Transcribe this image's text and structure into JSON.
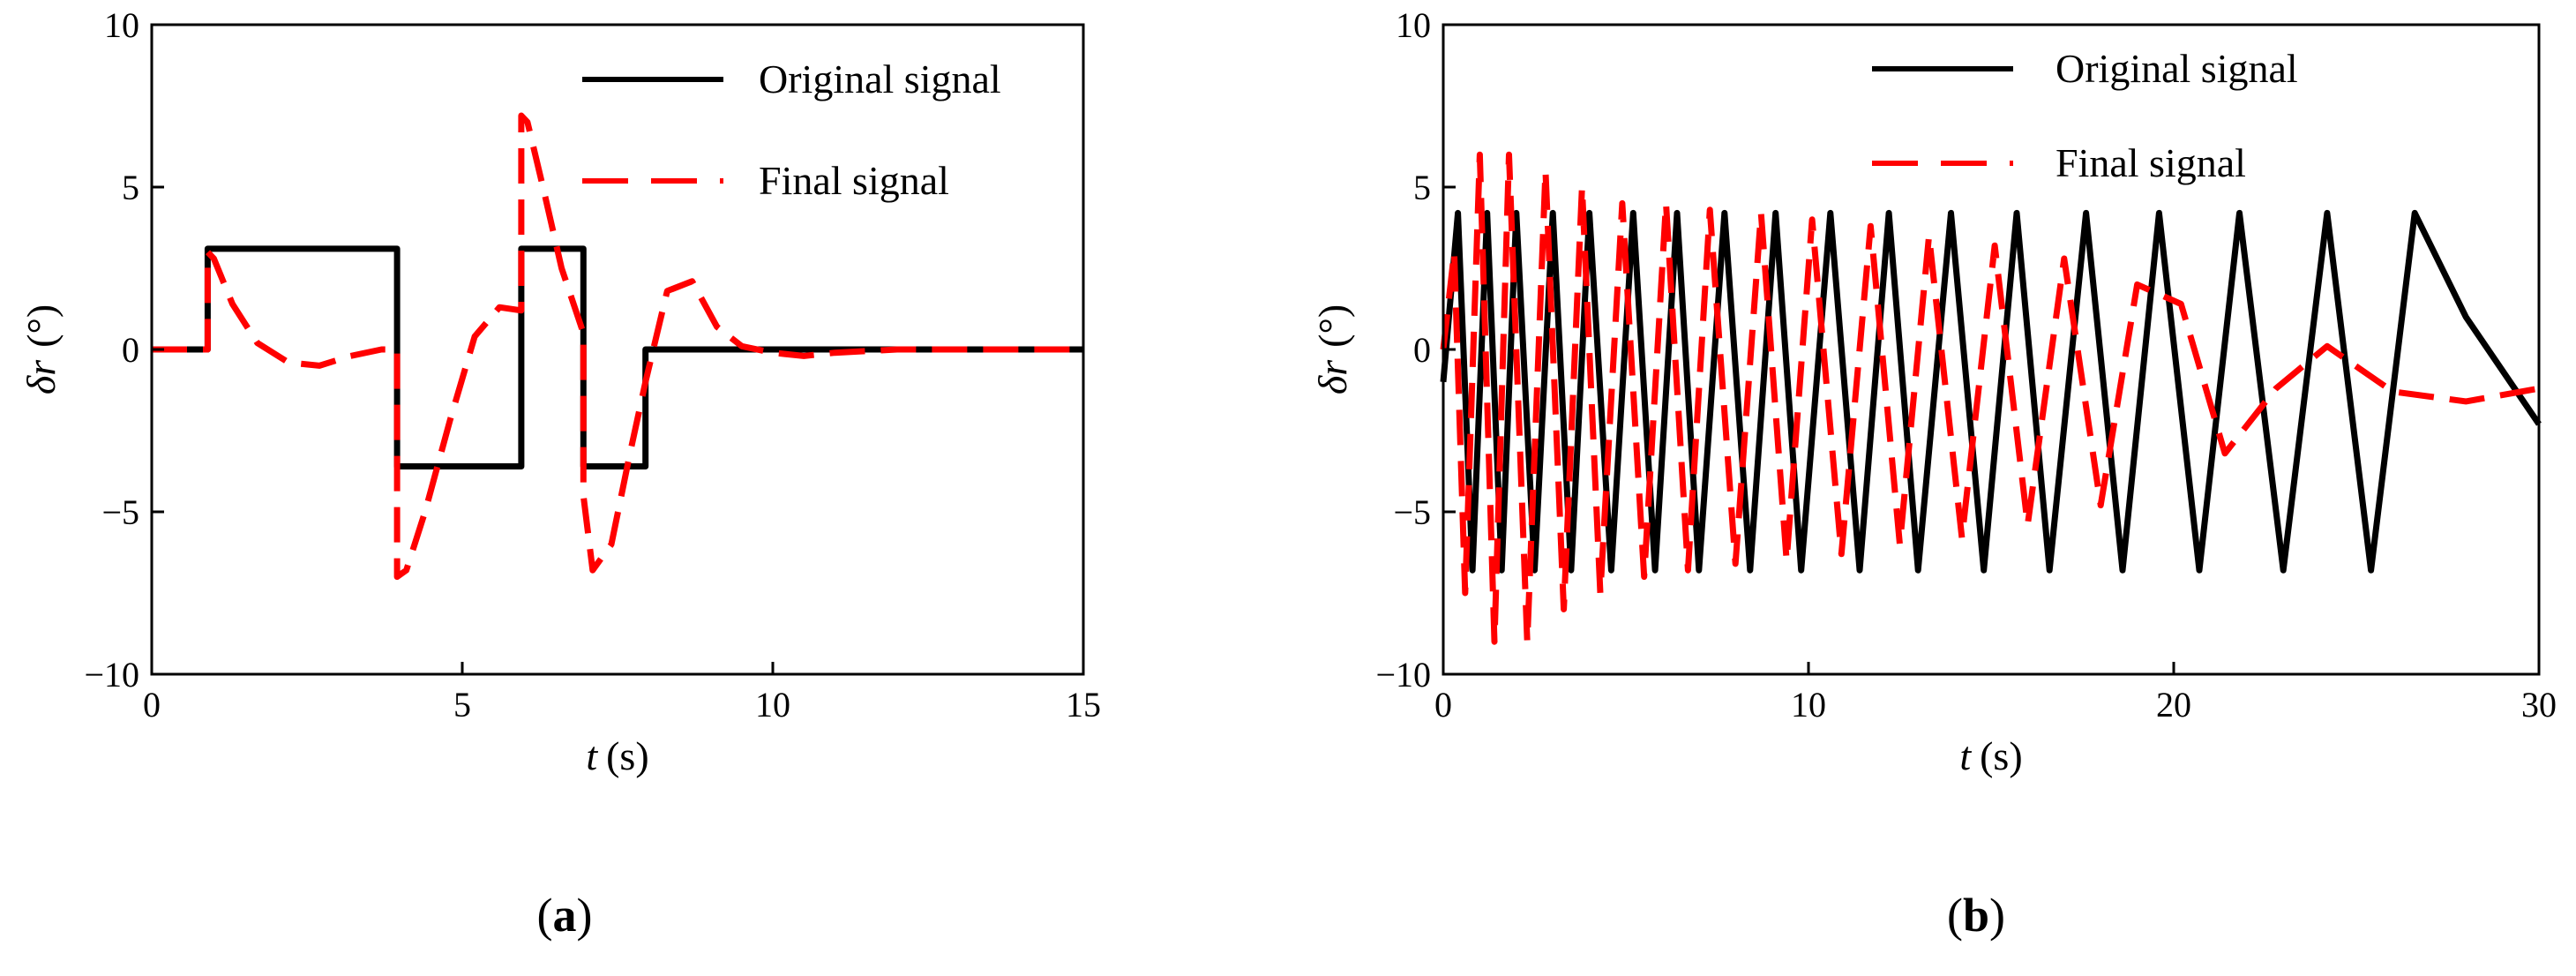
{
  "chart_data": [
    {
      "type": "line",
      "panel_label": "(a)",
      "panel_letter": "a",
      "xlabel": "t",
      "xlabel_unit": "(s)",
      "ylabel": "δr",
      "ylabel_unit": "(°)",
      "xlim": [
        0,
        15
      ],
      "ylim": [
        -10,
        10
      ],
      "xticks": [
        0,
        5,
        10,
        15
      ],
      "yticks": [
        -10,
        -5,
        0,
        5,
        10
      ],
      "grid": false,
      "legend_position": "top-right",
      "colors": {
        "original": "#000000",
        "final": "#ff0000"
      },
      "series": [
        {
          "name": "Original signal",
          "style": "solid",
          "x": [
            0,
            0.9,
            0.9,
            3.95,
            3.95,
            5.95,
            5.95,
            6.95,
            6.95,
            7.95,
            7.95,
            15
          ],
          "y": [
            0,
            0,
            3.1,
            3.1,
            -3.6,
            -3.6,
            3.1,
            3.1,
            -3.6,
            -3.6,
            0,
            0
          ]
        },
        {
          "name": "Final signal",
          "style": "dashed",
          "x": [
            0,
            0.9,
            0.9,
            1.0,
            1.3,
            1.7,
            2.2,
            2.7,
            3.2,
            3.7,
            3.95,
            3.95,
            4.1,
            4.4,
            4.8,
            5.2,
            5.6,
            5.95,
            5.95,
            6.05,
            6.3,
            6.6,
            6.95,
            6.95,
            7.1,
            7.4,
            7.7,
            7.95,
            7.95,
            8.3,
            8.7,
            9.1,
            9.5,
            10.0,
            10.5,
            11.0,
            12.0,
            15.0
          ],
          "y": [
            0,
            0,
            3.0,
            2.8,
            1.4,
            0.2,
            -0.4,
            -0.5,
            -0.2,
            0.0,
            0.0,
            -7.0,
            -6.8,
            -5.0,
            -2.2,
            0.4,
            1.3,
            1.2,
            7.2,
            7.0,
            5.0,
            2.5,
            0.5,
            -4.5,
            -6.8,
            -6.0,
            -3.2,
            -1.0,
            -1.0,
            1.8,
            2.1,
            0.7,
            0.1,
            -0.1,
            -0.2,
            -0.1,
            0.0,
            0.0
          ]
        }
      ]
    },
    {
      "type": "line",
      "panel_label": "(b)",
      "panel_letter": "b",
      "xlabel": "t",
      "xlabel_unit": "(s)",
      "ylabel": "δr",
      "ylabel_unit": "(°)",
      "xlim": [
        0,
        30
      ],
      "ylim": [
        -10,
        10
      ],
      "xticks": [
        0,
        10,
        20,
        30
      ],
      "yticks": [
        -10,
        -5,
        0,
        5,
        10
      ],
      "grid": false,
      "legend_position": "top-right",
      "colors": {
        "original": "#000000",
        "final": "#ff0000"
      },
      "series": [
        {
          "name": "Original signal",
          "style": "solid",
          "x": [
            0.0,
            0.4,
            0.8,
            1.2,
            1.6,
            2.0,
            2.5,
            3.0,
            3.5,
            4.0,
            4.6,
            5.2,
            5.8,
            6.4,
            7.0,
            7.7,
            8.4,
            9.1,
            9.8,
            10.6,
            11.4,
            12.2,
            13.0,
            13.9,
            14.8,
            15.7,
            16.6,
            17.6,
            18.6,
            19.6,
            20.7,
            21.8,
            23.0,
            24.2,
            25.4,
            26.6,
            28.0,
            30.0
          ],
          "y": [
            -1.0,
            4.2,
            -6.8,
            4.2,
            -6.8,
            4.2,
            -6.8,
            4.2,
            -6.8,
            4.2,
            -6.8,
            4.2,
            -6.8,
            4.2,
            -6.8,
            4.2,
            -6.8,
            4.2,
            -6.8,
            4.2,
            -6.8,
            4.2,
            -6.8,
            4.2,
            -6.8,
            4.2,
            -6.8,
            4.2,
            -6.8,
            4.2,
            -6.8,
            4.2,
            -6.8,
            4.2,
            -6.8,
            4.2,
            1.0,
            -2.3
          ]
        },
        {
          "name": "Final signal",
          "style": "dashed",
          "x": [
            0.0,
            0.3,
            0.6,
            1.0,
            1.4,
            1.8,
            2.3,
            2.8,
            3.3,
            3.8,
            4.3,
            4.9,
            5.5,
            6.1,
            6.7,
            7.3,
            8.0,
            8.7,
            9.4,
            10.1,
            10.9,
            11.7,
            12.5,
            13.3,
            14.2,
            15.1,
            16.0,
            17.0,
            18.0,
            19.0,
            20.2,
            21.4,
            22.8,
            24.2,
            26.0,
            28.0,
            30.0
          ],
          "y": [
            0.0,
            3.0,
            -7.5,
            6.0,
            -9.0,
            6.0,
            -9.0,
            5.5,
            -8.0,
            5.0,
            -7.5,
            4.5,
            -7.0,
            4.5,
            -6.8,
            4.3,
            -6.6,
            4.2,
            -6.5,
            4.0,
            -6.3,
            3.8,
            -6.0,
            3.5,
            -5.8,
            3.2,
            -5.4,
            2.8,
            -4.8,
            2.0,
            1.4,
            -3.2,
            -1.2,
            0.1,
            -1.3,
            -1.6,
            -1.2
          ]
        }
      ]
    }
  ]
}
